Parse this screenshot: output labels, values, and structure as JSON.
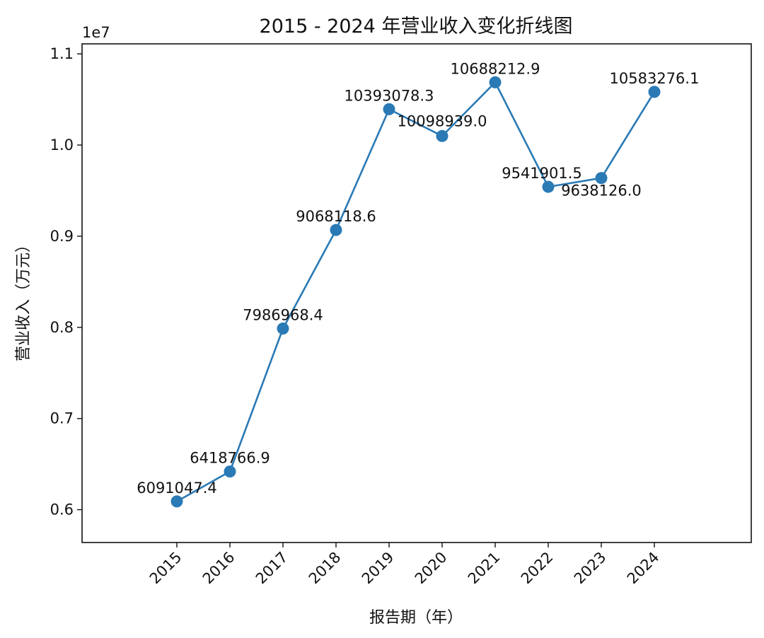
{
  "chart_data": {
    "type": "line",
    "title": "2015 - 2024 年营业收入变化折线图",
    "xlabel": "报告期（年）",
    "ylabel": "营业收入（万元）",
    "y_offset_label": "1e7",
    "x": [
      "2015",
      "2016",
      "2017",
      "2018",
      "2019",
      "2020",
      "2021",
      "2022",
      "2023",
      "2024"
    ],
    "series": [
      {
        "values": [
          6091047.4,
          6418766.9,
          7986968.4,
          9068118.6,
          10393078.3,
          10098939.0,
          10688212.9,
          9541901.5,
          9638126.0,
          10583276.1
        ],
        "labels": [
          "6091047.4",
          "6418766.9",
          "7986968.4",
          "9068118.6",
          "10393078.3",
          "10098939.0",
          "10688212.9",
          "9541901.5",
          "9638126.0",
          "10583276.1"
        ],
        "color": "#2a7ab5"
      }
    ],
    "y_ticks": [
      {
        "value": 6000000,
        "label": "0.6"
      },
      {
        "value": 7000000,
        "label": "0.7"
      },
      {
        "value": 8000000,
        "label": "0.8"
      },
      {
        "value": 9000000,
        "label": "0.9"
      },
      {
        "value": 10000000,
        "label": "1.0"
      },
      {
        "value": 11000000,
        "label": "1.1"
      }
    ],
    "ylim": [
      5640000,
      11110000
    ],
    "grid": false,
    "legend": "none"
  }
}
